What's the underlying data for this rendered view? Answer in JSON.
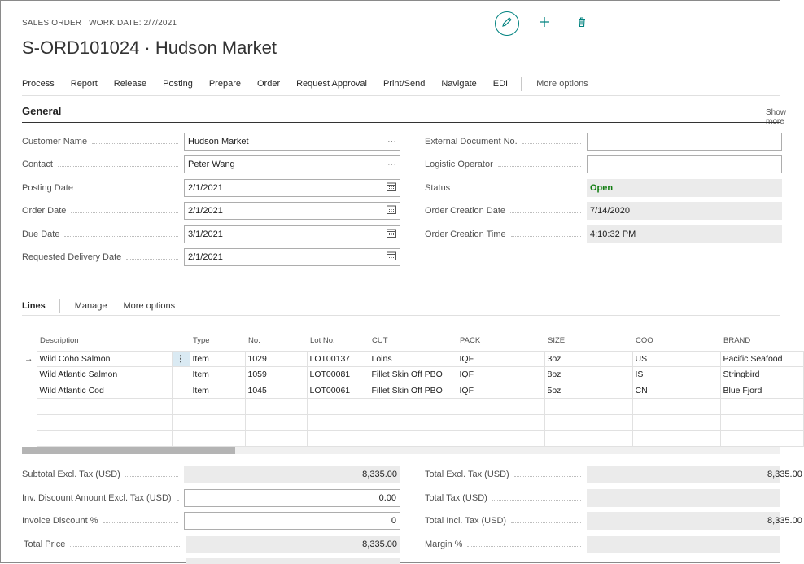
{
  "header": {
    "breadcrumb": "SALES ORDER | WORK DATE: 2/7/2021",
    "title": "S-ORD101024 · Hudson Market"
  },
  "actions": [
    "Process",
    "Report",
    "Release",
    "Posting",
    "Prepare",
    "Order",
    "Request Approval",
    "Print/Send",
    "Navigate",
    "EDI"
  ],
  "actions_more": "More options",
  "general": {
    "title": "General",
    "show_more": "Show more",
    "left": [
      {
        "label": "Customer Name",
        "value": "Hudson Market",
        "trail": "···"
      },
      {
        "label": "Contact",
        "value": "Peter Wang",
        "trail": "···"
      },
      {
        "label": "Posting Date",
        "value": "2/1/2021",
        "trail": "calendar"
      },
      {
        "label": "Order Date",
        "value": "2/1/2021",
        "trail": "calendar"
      },
      {
        "label": "Due Date",
        "value": "3/1/2021",
        "trail": "calendar"
      },
      {
        "label": "Requested Delivery Date",
        "value": "2/1/2021",
        "trail": "calendar"
      }
    ],
    "right": [
      {
        "label": "External Document No.",
        "value": ""
      },
      {
        "label": "Logistic Operator",
        "value": ""
      },
      {
        "label": "Status",
        "value": "Open"
      },
      {
        "label": "Order Creation Date",
        "value": "7/14/2020"
      },
      {
        "label": "Order Creation Time",
        "value": "4:10:32 PM"
      }
    ]
  },
  "lines": {
    "label": "Lines",
    "manage": "Manage",
    "more": "More options",
    "columns": [
      "Description",
      "Type",
      "No.",
      "Lot No.",
      "CUT",
      "PACK",
      "SIZE",
      "COO",
      "BRAND"
    ],
    "rows": [
      [
        "Wild Coho Salmon",
        "Item",
        "1029",
        "LOT00137",
        "Loins",
        "IQF",
        "3oz",
        "US",
        "Pacific Seafood"
      ],
      [
        "Wild Atlantic Salmon",
        "Item",
        "1059",
        "LOT00081",
        "Fillet Skin Off PBO",
        "IQF",
        "8oz",
        "IS",
        "Stringbird"
      ],
      [
        "Wild Atlantic Cod",
        "Item",
        "1045",
        "LOT00061",
        "Fillet Skin Off PBO",
        "IQF",
        "5oz",
        "CN",
        "Blue Fjord"
      ]
    ]
  },
  "totals": {
    "left": [
      {
        "label": "Subtotal Excl. Tax (USD)",
        "value": "8,335.00"
      },
      {
        "label": "Inv. Discount Amount Excl. Tax (USD)",
        "value": "0.00"
      },
      {
        "label": "Invoice Discount %",
        "value": "0"
      },
      {
        "label": "Total Price",
        "value": "8,335.00"
      }
    ],
    "right": [
      {
        "label": "Total Excl. Tax (USD)",
        "value": "8,335.00"
      },
      {
        "label": "Total Tax (USD)",
        "value": ""
      },
      {
        "label": "Total Incl. Tax (USD)",
        "value": "8,335.00"
      },
      {
        "label": "Margin %",
        "value": ""
      }
    ]
  },
  "colors": {
    "accent": "#00827f",
    "status_open": "#107c10"
  }
}
